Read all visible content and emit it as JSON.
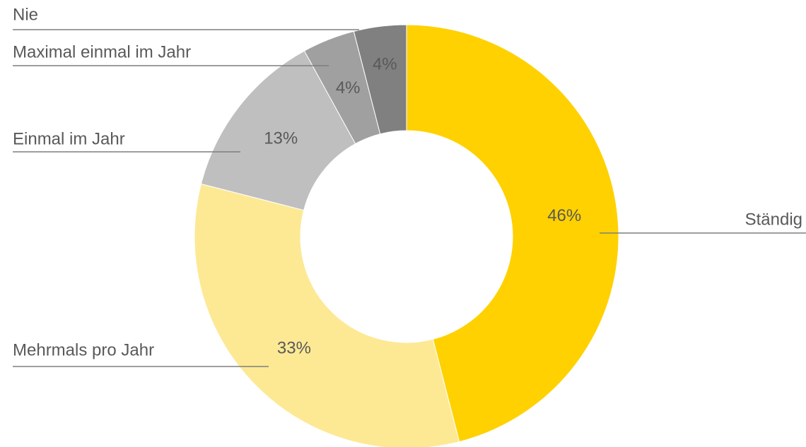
{
  "chart_data": {
    "type": "donut",
    "categories": [
      "Ständig",
      "Mehrmals pro Jahr",
      "Einmal im Jahr",
      "Maximal einmal im Jahr",
      "Nie"
    ],
    "values": [
      46,
      33,
      13,
      4,
      4
    ],
    "value_labels": [
      "46%",
      "33%",
      "13%",
      "4%",
      "4%"
    ],
    "colors": [
      "#FFD100",
      "#FDE994",
      "#BFBFBF",
      "#A0A0A0",
      "#808080"
    ]
  }
}
